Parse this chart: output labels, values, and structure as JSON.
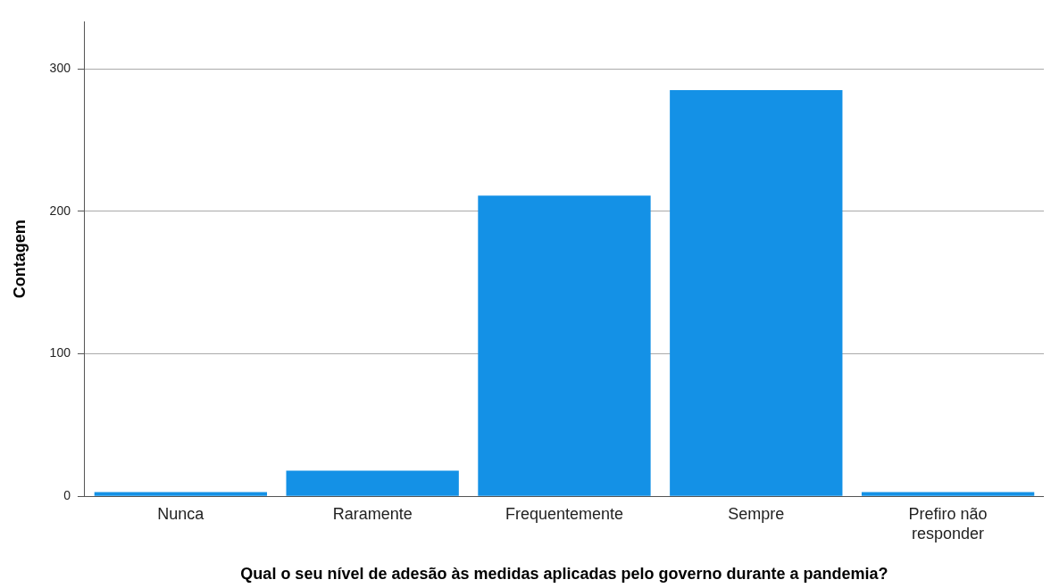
{
  "chart_data": {
    "type": "bar",
    "xlabel": "Qual o seu nível de adesão às medidas aplicadas pelo governo durante a pandemia?",
    "ylabel": "Contagem",
    "categories": [
      "Nunca",
      "Raramente",
      "Frequentemente",
      "Sempre",
      "Prefiro não responder"
    ],
    "values": [
      3,
      18,
      211,
      285,
      3
    ],
    "color": "#1491e6",
    "ylim": [
      0,
      333
    ],
    "yticks": [
      0,
      100,
      200,
      300
    ],
    "grid": "y",
    "legend": false
  }
}
